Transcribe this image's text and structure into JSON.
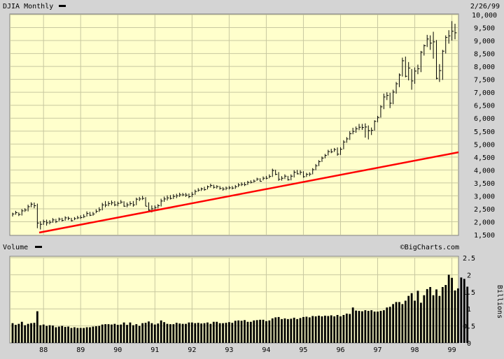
{
  "header": {
    "title": "DJIA Monthly",
    "date": "2/26/99"
  },
  "volume_panel": {
    "title": "Volume",
    "brand": "©BigCharts.com",
    "unit_label": "Billions"
  },
  "colors": {
    "panel_bg": "#ffffcc",
    "frame_bg": "#d4d4d4",
    "grid": "#c8c8a0",
    "price_bars": "#000000",
    "trendline": "#ff0000",
    "volume_bars": "#000000"
  },
  "chart_data": [
    {
      "type": "ohlc",
      "title": "DJIA Monthly",
      "x_tick_labels": [
        "88",
        "89",
        "90",
        "91",
        "92",
        "93",
        "94",
        "95",
        "96",
        "97",
        "98",
        "99"
      ],
      "y_tick_labels": [
        "1,500",
        "2,000",
        "2,500",
        "3,000",
        "3,500",
        "4,000",
        "4,500",
        "5,000",
        "5,500",
        "6,000",
        "6,500",
        "7,000",
        "7,500",
        "8,000",
        "8,500",
        "9,000",
        "9,500",
        "10,000"
      ],
      "ylim": [
        1500,
        10000
      ],
      "x_range": [
        "1987-03",
        "1999-02"
      ],
      "grid": true,
      "close": [
        2300,
        2350,
        2280,
        2420,
        2450,
        2580,
        2680,
        2620,
        1950,
        1900,
        2000,
        1960,
        1980,
        2070,
        2000,
        2100,
        2050,
        2150,
        2130,
        2040,
        2120,
        2150,
        2160,
        2200,
        2320,
        2250,
        2300,
        2400,
        2460,
        2650,
        2640,
        2700,
        2730,
        2650,
        2710,
        2760,
        2600,
        2650,
        2700,
        2650,
        2870,
        2880,
        2900,
        2600,
        2450,
        2500,
        2550,
        2620,
        2800,
        2880,
        2920,
        2900,
        2980,
        3000,
        3040,
        3040,
        3030,
        2970,
        3060,
        3170,
        3220,
        3270,
        3240,
        3350,
        3400,
        3330,
        3360,
        3290,
        3260,
        3300,
        3310,
        3300,
        3350,
        3420,
        3440,
        3430,
        3520,
        3520,
        3570,
        3650,
        3560,
        3680,
        3680,
        3750,
        3980,
        3830,
        3640,
        3680,
        3760,
        3620,
        3760,
        3910,
        3850,
        3910,
        3740,
        3830,
        3840,
        4010,
        4160,
        4320,
        4460,
        4560,
        4710,
        4700,
        4790,
        4610,
        4800,
        5080,
        5200,
        5400,
        5490,
        5590,
        5650,
        5640,
        5660,
        5520,
        5530,
        5880,
        6030,
        6440,
        6820,
        6880,
        6580,
        7010,
        7330,
        7670,
        8220,
        7620,
        7940,
        7440,
        7820,
        7910,
        8550,
        8800,
        9060,
        8900,
        8950,
        7540,
        7840,
        8590,
        9120,
        9180,
        9360,
        9300
      ],
      "high": [
        2350,
        2420,
        2360,
        2490,
        2520,
        2660,
        2750,
        2740,
        2700,
        2020,
        2080,
        2080,
        2060,
        2140,
        2110,
        2160,
        2150,
        2210,
        2200,
        2150,
        2180,
        2230,
        2250,
        2290,
        2400,
        2380,
        2380,
        2480,
        2560,
        2730,
        2800,
        2790,
        2820,
        2800,
        2780,
        2840,
        2790,
        2740,
        2790,
        2800,
        2930,
        2960,
        3000,
        2950,
        2750,
        2630,
        2630,
        2680,
        2890,
        2970,
        3020,
        3030,
        3060,
        3080,
        3120,
        3110,
        3110,
        3090,
        3150,
        3240,
        3300,
        3320,
        3350,
        3400,
        3470,
        3430,
        3410,
        3380,
        3340,
        3360,
        3380,
        3380,
        3420,
        3490,
        3520,
        3530,
        3580,
        3600,
        3630,
        3700,
        3680,
        3750,
        3770,
        3830,
        4050,
        4010,
        3920,
        3760,
        3830,
        3770,
        3830,
        3990,
        4000,
        3990,
        3950,
        3890,
        3910,
        4070,
        4230,
        4380,
        4520,
        4620,
        4780,
        4820,
        4850,
        4870,
        4880,
        5150,
        5270,
        5500,
        5630,
        5680,
        5780,
        5780,
        5800,
        5720,
        5640,
        5920,
        6090,
        6500,
        6950,
        7000,
        6980,
        7100,
        7400,
        7730,
        8340,
        8380,
        8170,
        7900,
        7960,
        8070,
        8600,
        8850,
        9220,
        9200,
        9340,
        9020,
        8090,
        8640,
        9200,
        9400,
        9750,
        9650
      ],
      "low": [
        2200,
        2270,
        2220,
        2240,
        2380,
        2400,
        2560,
        2520,
        1750,
        1700,
        1880,
        1850,
        1900,
        1960,
        1950,
        2020,
        2010,
        2040,
        2060,
        2010,
        2060,
        2100,
        2110,
        2140,
        2200,
        2220,
        2230,
        2330,
        2380,
        2440,
        2560,
        2600,
        2640,
        2600,
        2600,
        2690,
        2580,
        2560,
        2620,
        2580,
        2640,
        2800,
        2840,
        2600,
        2380,
        2360,
        2440,
        2520,
        2590,
        2770,
        2820,
        2860,
        2880,
        2910,
        2960,
        2990,
        2960,
        2910,
        2950,
        3040,
        3160,
        3190,
        3200,
        3250,
        3320,
        3280,
        3280,
        3240,
        3200,
        3220,
        3250,
        3250,
        3270,
        3340,
        3380,
        3380,
        3420,
        3480,
        3510,
        3580,
        3550,
        3600,
        3640,
        3680,
        3730,
        3800,
        3580,
        3590,
        3650,
        3590,
        3600,
        3710,
        3830,
        3810,
        3700,
        3730,
        3760,
        3830,
        3990,
        4150,
        4310,
        4450,
        4560,
        4650,
        4700,
        4550,
        4580,
        4800,
        5050,
        5160,
        5380,
        5440,
        5540,
        5550,
        5250,
        5180,
        5350,
        5520,
        5840,
        6020,
        6350,
        6700,
        6390,
        6540,
        6950,
        7200,
        7610,
        7580,
        7460,
        7100,
        7330,
        7700,
        7780,
        8420,
        8750,
        8640,
        8300,
        7500,
        7400,
        7480,
        8500,
        8880,
        9000,
        9050
      ]
    },
    {
      "type": "bar",
      "title": "Volume",
      "ylabel": "Billions",
      "y_tick_labels": [
        "0",
        "0.5",
        "1",
        "1.5",
        "2",
        "2.5"
      ],
      "ylim": [
        0,
        2.5
      ],
      "grid": true,
      "values": [
        0.58,
        0.53,
        0.56,
        0.62,
        0.52,
        0.56,
        0.58,
        0.59,
        0.93,
        0.52,
        0.54,
        0.5,
        0.52,
        0.51,
        0.46,
        0.48,
        0.5,
        0.47,
        0.48,
        0.44,
        0.46,
        0.44,
        0.44,
        0.44,
        0.46,
        0.46,
        0.48,
        0.49,
        0.5,
        0.54,
        0.55,
        0.55,
        0.54,
        0.56,
        0.53,
        0.54,
        0.6,
        0.53,
        0.6,
        0.52,
        0.55,
        0.5,
        0.58,
        0.59,
        0.63,
        0.58,
        0.54,
        0.57,
        0.66,
        0.61,
        0.56,
        0.55,
        0.55,
        0.59,
        0.57,
        0.56,
        0.56,
        0.6,
        0.6,
        0.58,
        0.59,
        0.57,
        0.58,
        0.6,
        0.56,
        0.62,
        0.62,
        0.58,
        0.58,
        0.59,
        0.61,
        0.59,
        0.65,
        0.66,
        0.65,
        0.67,
        0.62,
        0.62,
        0.66,
        0.67,
        0.68,
        0.68,
        0.64,
        0.66,
        0.72,
        0.75,
        0.76,
        0.7,
        0.72,
        0.7,
        0.71,
        0.74,
        0.7,
        0.73,
        0.76,
        0.77,
        0.75,
        0.79,
        0.78,
        0.8,
        0.78,
        0.8,
        0.79,
        0.81,
        0.78,
        0.82,
        0.78,
        0.82,
        0.86,
        0.85,
        1.04,
        0.95,
        0.94,
        0.93,
        0.96,
        0.94,
        0.96,
        0.92,
        0.92,
        0.94,
        0.96,
        1.04,
        1.06,
        1.14,
        1.2,
        1.2,
        1.14,
        1.24,
        1.38,
        1.46,
        1.24,
        1.53,
        1.18,
        1.4,
        1.58,
        1.64,
        1.4,
        1.57,
        1.38,
        1.64,
        1.7,
        2.0,
        1.91,
        1.54,
        1.6,
        1.92,
        1.88,
        1.65
      ]
    }
  ]
}
